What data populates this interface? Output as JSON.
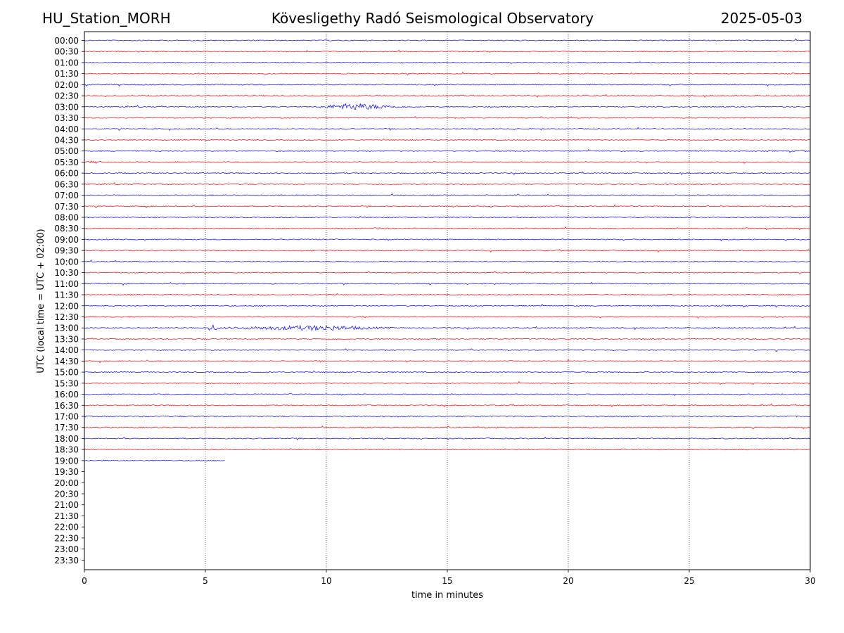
{
  "header": {
    "station": "HU_Station_MORH",
    "title": "Kövesligethy Radó Seismological Observatory",
    "date": "2025-05-03"
  },
  "chart_data": {
    "type": "line",
    "xlabel": "time in minutes",
    "ylabel": "UTC (local time = UTC + 02:00)",
    "xlim": [
      0,
      30
    ],
    "xticks": [
      0,
      5,
      10,
      15,
      20,
      25,
      30
    ],
    "vgrid_minutes": [
      5,
      10,
      15,
      20,
      25
    ],
    "row_labels": [
      "00:00",
      "00:30",
      "01:00",
      "01:30",
      "02:00",
      "02:30",
      "03:00",
      "03:30",
      "04:00",
      "04:30",
      "05:00",
      "05:30",
      "06:00",
      "06:30",
      "07:00",
      "07:30",
      "08:00",
      "08:30",
      "09:00",
      "09:30",
      "10:00",
      "10:30",
      "11:00",
      "11:30",
      "12:00",
      "12:30",
      "13:00",
      "13:30",
      "14:00",
      "14:30",
      "15:00",
      "15:30",
      "16:00",
      "16:30",
      "17:00",
      "17:30",
      "18:00",
      "18:30",
      "19:00",
      "19:30",
      "20:00",
      "20:30",
      "21:00",
      "21:30",
      "22:00",
      "22:30",
      "23:00",
      "23:30"
    ],
    "colors": {
      "even": "#0000ff",
      "odd": "#ff0000",
      "grid": "#000000"
    },
    "traces_recorded": 39,
    "last_trace_end_minute": 5.8,
    "events": [
      {
        "row": "03:00",
        "start_min": 9.7,
        "peak_min": 11.1,
        "end_min": 13.8,
        "amplitude": 5
      },
      {
        "row": "05:00",
        "start_min": 29.2,
        "peak_min": 29.7,
        "end_min": 30,
        "amplitude": 2
      },
      {
        "row": "05:30",
        "start_min": 0.0,
        "peak_min": 0.4,
        "end_min": 1.0,
        "amplitude": 2
      },
      {
        "row": "08:30",
        "start_min": 11.5,
        "peak_min": 12.3,
        "end_min": 13.0,
        "amplitude": 1.5
      },
      {
        "row": "13:00",
        "start_min": 5.1,
        "peak_min": 5.2,
        "end_min": 5.7,
        "amplitude": 6
      },
      {
        "row": "13:00",
        "start_min": 5.7,
        "peak_min": 9.8,
        "end_min": 13.5,
        "amplitude": 4
      },
      {
        "row": "16:00",
        "start_min": 8.5,
        "peak_min": 8.6,
        "end_min": 8.8,
        "amplitude": 2
      }
    ]
  }
}
